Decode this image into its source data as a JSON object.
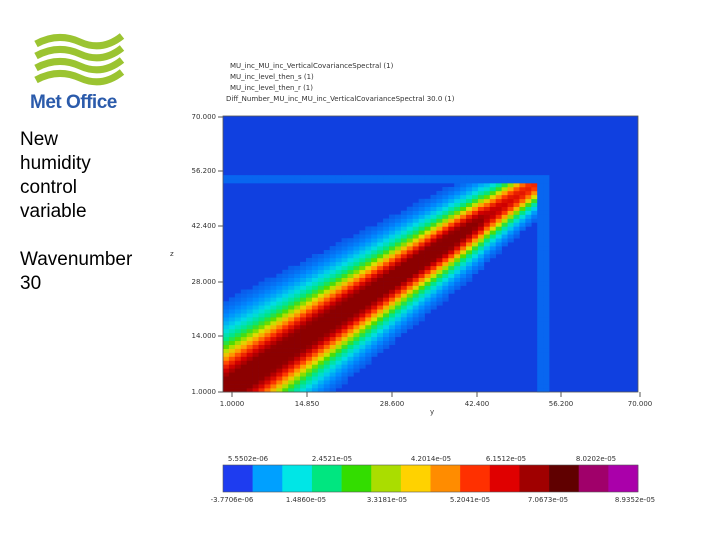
{
  "logo": {
    "text": "Met Office"
  },
  "side_text": {
    "lines_1": [
      "New",
      "humidity",
      "control",
      "variable"
    ],
    "lines_2": [
      "Wavenumber",
      "30"
    ]
  },
  "colors": {
    "logo_green": "#9bc431",
    "logo_blue": "#2b5bab",
    "background_field": "#1040e0"
  },
  "chart_data": {
    "type": "heatmap",
    "header_lines": [
      "MU_inc_MU_inc_VerticalCovarianceSpectral (1)",
      "MU_inc_level_then_s (1)",
      "MU_inc_level_then_r (1)",
      "Diff_Number_MU_inc_MU_inc_VerticalCovarianceSpectral 30.0 (1)"
    ],
    "xlabel": "y",
    "ylabel": "z",
    "x_ticks": [
      "1.0000",
      "14.850",
      "28.600",
      "42.400",
      "56.200",
      "70.000"
    ],
    "y_ticks": [
      "1.0000",
      "14.000",
      "28.000",
      "42.400",
      "56.200",
      "70.000"
    ],
    "xlim": [
      1,
      70
    ],
    "ylim": [
      1,
      70
    ],
    "diagonal_end": 53,
    "colorbar": {
      "colors": [
        "#1e3cf0",
        "#00a0ff",
        "#00e6e6",
        "#00e680",
        "#33dd00",
        "#aadd00",
        "#ffd200",
        "#ff8c00",
        "#ff3000",
        "#e00000",
        "#a00000",
        "#600000",
        "#a0006a",
        "#aa00aa"
      ],
      "upper_labels": [
        "5.5502e-06",
        "2.4521e-05",
        "4.2014e-05",
        "6.1512e-05",
        "8.0202e-05"
      ],
      "lower_labels": [
        "-3.7706e-06",
        "1.4860e-05",
        "3.3181e-05",
        "5.2041e-05",
        "7.0673e-05",
        "8.9352e-05"
      ]
    }
  }
}
